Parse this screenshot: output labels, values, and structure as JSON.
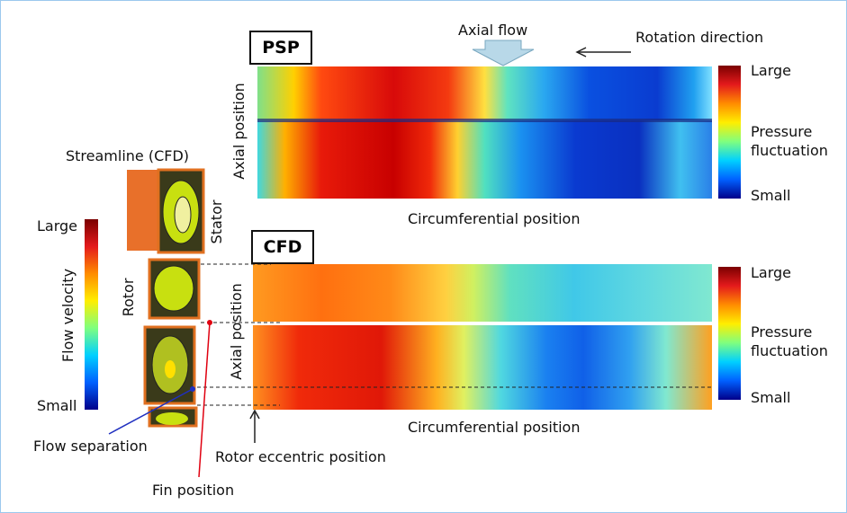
{
  "psp_panel": {
    "label": "PSP",
    "axial_flow": "Axial flow",
    "rotation_direction": "Rotation direction",
    "y_axis": "Axial position",
    "x_axis": "Circumferential position",
    "colorbar": {
      "high": "Large",
      "title": "Pressure fluctuation",
      "low": "Small"
    }
  },
  "cfd_panel": {
    "label": "CFD",
    "y_axis": "Axial position",
    "x_axis": "Circumferential position",
    "eccentric": "Rotor eccentric position",
    "colorbar": {
      "high": "Large",
      "title": "Pressure fluctuation",
      "low": "Small"
    }
  },
  "streamline": {
    "title": "Streamline (CFD)",
    "stator": "Stator",
    "rotor": "Rotor",
    "flow_separation": "Flow separation",
    "fin_position": "Fin position",
    "colorbar": {
      "high": "Large",
      "title": "Flow velocity",
      "low": "Small"
    }
  }
}
